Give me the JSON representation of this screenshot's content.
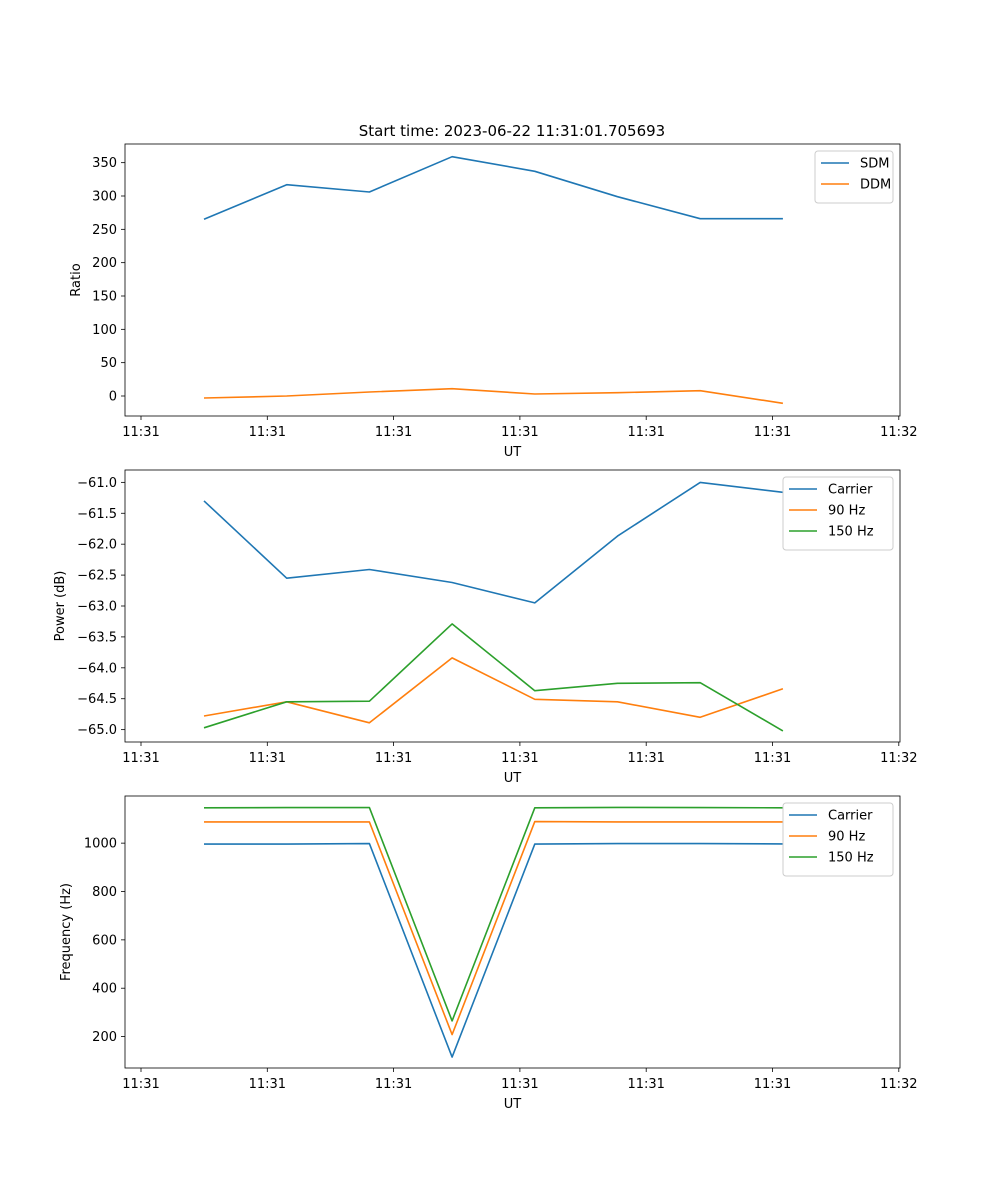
{
  "title": "Start time: 2023-06-22 11:31:01.705693",
  "chart_data": [
    {
      "type": "line",
      "xlabel": "UT",
      "ylabel": "Ratio",
      "x_tick_labels": [
        "11:31",
        "11:31",
        "11:31",
        "11:31",
        "11:31",
        "11:31",
        "11:32"
      ],
      "x_points": 8,
      "ylim": [
        -30,
        378
      ],
      "yticks": [
        0,
        50,
        100,
        150,
        200,
        250,
        300,
        350
      ],
      "legend_position": "upper-right",
      "series": [
        {
          "name": "SDM",
          "color": "#1f77b4",
          "values": [
            265,
            317,
            306,
            359,
            337,
            299,
            266,
            266
          ]
        },
        {
          "name": "DDM",
          "color": "#ff7f0e",
          "values": [
            -3,
            0,
            6,
            11,
            3,
            5,
            8,
            -11
          ]
        }
      ]
    },
    {
      "type": "line",
      "xlabel": "UT",
      "ylabel": "Power (dB)",
      "x_tick_labels": [
        "11:31",
        "11:31",
        "11:31",
        "11:31",
        "11:31",
        "11:31",
        "11:32"
      ],
      "x_points": 8,
      "ylim": [
        -65.2,
        -60.8
      ],
      "yticks": [
        -65.0,
        -64.5,
        -64.0,
        -63.5,
        -63.0,
        -62.5,
        -62.0,
        -61.5,
        -61.0
      ],
      "legend_position": "upper-right",
      "series": [
        {
          "name": "Carrier",
          "color": "#1f77b4",
          "values": [
            -61.3,
            -62.55,
            -62.41,
            -62.62,
            -62.95,
            -61.87,
            -61.0,
            -61.16
          ]
        },
        {
          "name": "90 Hz",
          "color": "#ff7f0e",
          "values": [
            -64.78,
            -64.55,
            -64.89,
            -63.84,
            -64.51,
            -64.55,
            -64.8,
            -64.34
          ]
        },
        {
          "name": "150 Hz",
          "color": "#2ca02c",
          "values": [
            -64.97,
            -64.55,
            -64.54,
            -63.29,
            -64.37,
            -64.25,
            -64.24,
            -65.02
          ]
        }
      ]
    },
    {
      "type": "line",
      "xlabel": "UT",
      "ylabel": "Frequency (Hz)",
      "x_tick_labels": [
        "11:31",
        "11:31",
        "11:31",
        "11:31",
        "11:31",
        "11:31",
        "11:32"
      ],
      "x_points": 8,
      "ylim": [
        70,
        1195
      ],
      "yticks": [
        200,
        400,
        600,
        800,
        1000
      ],
      "legend_position": "upper-right",
      "series": [
        {
          "name": "Carrier",
          "color": "#1f77b4",
          "values": [
            996,
            996,
            998,
            115,
            996,
            998,
            998,
            997
          ]
        },
        {
          "name": "90 Hz",
          "color": "#ff7f0e",
          "values": [
            1088,
            1088,
            1088,
            208,
            1089,
            1088,
            1088,
            1088
          ]
        },
        {
          "name": "150 Hz",
          "color": "#2ca02c",
          "values": [
            1146,
            1147,
            1147,
            265,
            1146,
            1148,
            1147,
            1146
          ]
        }
      ]
    }
  ]
}
